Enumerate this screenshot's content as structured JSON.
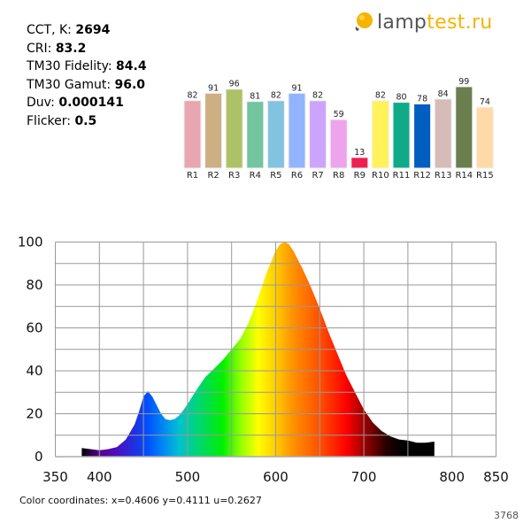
{
  "params": [
    {
      "label": "CCT, K:",
      "value": "2694"
    },
    {
      "label": "CRI:",
      "value": "83.2"
    },
    {
      "label": "TM30 Fidelity:",
      "value": "84.4"
    },
    {
      "label": "TM30 Gamut:",
      "value": "96.0"
    },
    {
      "label": "Duv:",
      "value": "0.000141"
    },
    {
      "label": "Flicker:",
      "value": "0.5"
    }
  ],
  "logo": {
    "part1": "lamp",
    "part2": "test.ru",
    "icon": "lightbulb-icon",
    "accent": "#f5b400"
  },
  "footer": {
    "coords": "Color coordinates: x=0.4606 y=0.4111 u=0.2627",
    "id": "3768"
  },
  "chart_data": [
    {
      "type": "bar",
      "categories": [
        "R1",
        "R2",
        "R3",
        "R4",
        "R5",
        "R6",
        "R7",
        "R8",
        "R9",
        "R10",
        "R11",
        "R12",
        "R13",
        "R14",
        "R15"
      ],
      "values": [
        82,
        91,
        96,
        81,
        82,
        91,
        82,
        59,
        13,
        82,
        80,
        78,
        84,
        99,
        74
      ],
      "colors": [
        "#e8a6b0",
        "#ccb084",
        "#adc266",
        "#72c59e",
        "#82c3e0",
        "#92b4fe",
        "#cda4fc",
        "#eea4ec",
        "#ee2050",
        "#fff25a",
        "#10aa88",
        "#005ec0",
        "#d6bcb8",
        "#6b7e4e",
        "#ffdaa6"
      ],
      "ylim": [
        0,
        100
      ]
    },
    {
      "type": "area",
      "x": [
        380,
        390,
        400,
        410,
        420,
        430,
        440,
        445,
        450,
        455,
        460,
        465,
        470,
        475,
        480,
        485,
        490,
        495,
        500,
        510,
        520,
        530,
        540,
        550,
        560,
        570,
        580,
        590,
        600,
        605,
        610,
        615,
        620,
        630,
        640,
        650,
        660,
        670,
        680,
        690,
        700,
        710,
        720,
        730,
        740,
        750,
        760,
        770,
        780
      ],
      "y": [
        4,
        3.5,
        3,
        3.5,
        4.5,
        8,
        15,
        21,
        28,
        30.5,
        28,
        24,
        20,
        17.5,
        17,
        17.5,
        19,
        21.5,
        24.5,
        31,
        37,
        41,
        45,
        50,
        55,
        63,
        74,
        86,
        96,
        99,
        100,
        99,
        96,
        88,
        79,
        69,
        58,
        48,
        38,
        30,
        22,
        16,
        12,
        9.5,
        8,
        7.5,
        6.5,
        6.5,
        7
      ],
      "xlim": [
        350,
        850
      ],
      "ylim": [
        0,
        100
      ],
      "xticks": [
        350,
        400,
        500,
        600,
        700,
        800,
        850
      ],
      "yticks": [
        0,
        20,
        40,
        60,
        80,
        100
      ],
      "grid": true,
      "fill": "visible-spectrum-gradient"
    }
  ]
}
